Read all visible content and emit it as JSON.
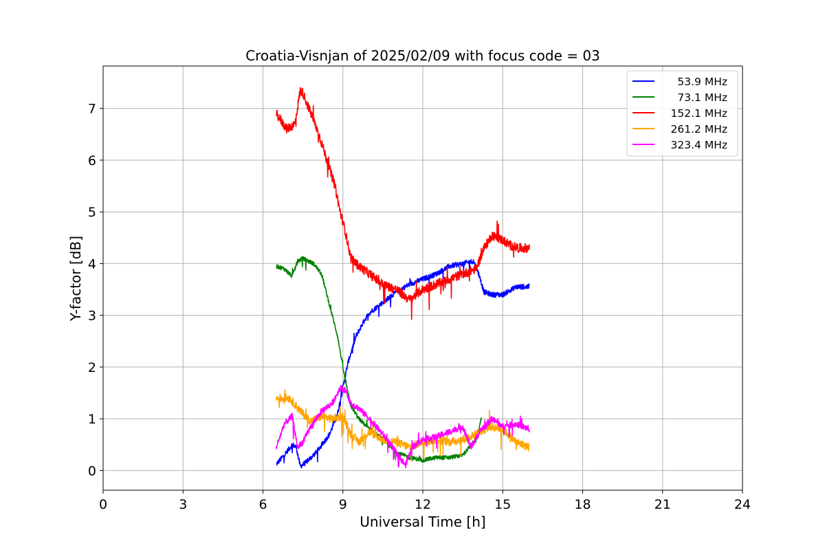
{
  "chart_data": {
    "type": "line",
    "title": "Croatia-Visnjan of 2025/02/09 with focus code = 03",
    "xlabel": "Universal Time [h]",
    "ylabel": "Y-factor [dB]",
    "xlim": [
      0,
      24
    ],
    "ylim": [
      -0.38,
      7.82
    ],
    "xticks": [
      "0",
      "3",
      "6",
      "9",
      "12",
      "15",
      "18",
      "21",
      "24"
    ],
    "yticks": [
      "0",
      "1",
      "2",
      "3",
      "4",
      "5",
      "6",
      "7"
    ],
    "grid": true,
    "legend_position": "top-right",
    "series": [
      {
        "name": "53.9 MHz",
        "color": "#0000ff",
        "noise": 0.05,
        "x": [
          6.5,
          6.8,
          7.1,
          7.25,
          7.4,
          7.6,
          8.0,
          8.5,
          8.8,
          9.0,
          9.2,
          9.5,
          9.8,
          10.0,
          10.5,
          11.0,
          11.5,
          12.0,
          12.5,
          13.0,
          13.5,
          13.9,
          14.1,
          14.3,
          14.6,
          15.0,
          15.5,
          16.0
        ],
        "y": [
          0.12,
          0.3,
          0.5,
          0.45,
          0.08,
          0.15,
          0.35,
          0.7,
          1.1,
          1.6,
          2.1,
          2.6,
          2.9,
          3.05,
          3.25,
          3.45,
          3.6,
          3.7,
          3.8,
          3.95,
          4.0,
          4.05,
          3.8,
          3.45,
          3.4,
          3.4,
          3.55,
          3.55
        ]
      },
      {
        "name": "73.1 MHz",
        "color": "#008000",
        "noise": 0.04,
        "x": [
          6.5,
          6.8,
          7.1,
          7.3,
          7.5,
          7.9,
          8.2,
          8.5,
          8.8,
          9.0,
          9.1,
          9.3,
          9.6,
          10.0,
          10.5,
          11.0,
          11.5,
          12.0,
          12.5,
          13.0,
          13.5,
          14.0,
          14.2
        ],
        "y": [
          3.95,
          3.9,
          3.75,
          4.05,
          4.1,
          4.0,
          3.8,
          3.2,
          2.6,
          2.0,
          1.7,
          1.25,
          1.0,
          0.8,
          0.6,
          0.35,
          0.25,
          0.2,
          0.25,
          0.25,
          0.3,
          0.6,
          1.0
        ]
      },
      {
        "name": "152.1 MHz",
        "color": "#ff0000",
        "noise": 0.09,
        "x": [
          6.5,
          6.9,
          7.2,
          7.4,
          7.5,
          7.8,
          8.1,
          8.4,
          8.7,
          8.9,
          9.1,
          9.3,
          9.6,
          10.0,
          10.5,
          11.0,
          11.5,
          12.0,
          12.5,
          13.0,
          13.5,
          14.0,
          14.3,
          14.6,
          15.0,
          15.3,
          15.6,
          16.0
        ],
        "y": [
          6.9,
          6.6,
          6.7,
          7.35,
          7.3,
          6.9,
          6.5,
          6.0,
          5.5,
          5.0,
          4.6,
          4.1,
          3.95,
          3.8,
          3.6,
          3.5,
          3.3,
          3.5,
          3.6,
          3.7,
          3.8,
          3.9,
          4.3,
          4.55,
          4.45,
          4.35,
          4.3,
          4.3
        ]
      },
      {
        "name": "261.2 MHz",
        "color": "#ffa500",
        "noise": 0.08,
        "x": [
          6.5,
          7.0,
          7.4,
          7.8,
          8.2,
          8.6,
          9.0,
          9.3,
          9.6,
          10.0,
          10.5,
          11.0,
          11.5,
          12.0,
          12.5,
          13.0,
          13.5,
          14.0,
          14.5,
          15.0,
          15.5,
          16.0
        ],
        "y": [
          1.4,
          1.4,
          1.15,
          0.95,
          1.05,
          1.0,
          1.05,
          0.7,
          0.55,
          0.75,
          0.6,
          0.55,
          0.45,
          0.55,
          0.6,
          0.55,
          0.6,
          0.7,
          0.85,
          0.8,
          0.55,
          0.45
        ]
      },
      {
        "name": "323.4 MHz",
        "color": "#ff00ff",
        "noise": 0.06,
        "x": [
          6.5,
          6.8,
          7.1,
          7.3,
          7.5,
          7.8,
          8.2,
          8.6,
          8.9,
          9.1,
          9.3,
          9.6,
          10.0,
          10.5,
          11.0,
          11.35,
          11.6,
          12.0,
          12.5,
          13.0,
          13.5,
          13.8,
          14.2,
          14.6,
          15.0,
          15.5,
          16.0
        ],
        "y": [
          0.45,
          0.9,
          1.05,
          0.45,
          0.55,
          0.85,
          1.15,
          1.3,
          1.6,
          1.55,
          1.3,
          1.2,
          1.0,
          0.7,
          0.35,
          0.1,
          0.45,
          0.6,
          0.65,
          0.75,
          0.85,
          0.45,
          0.8,
          1.0,
          0.85,
          0.9,
          0.8
        ]
      }
    ]
  }
}
